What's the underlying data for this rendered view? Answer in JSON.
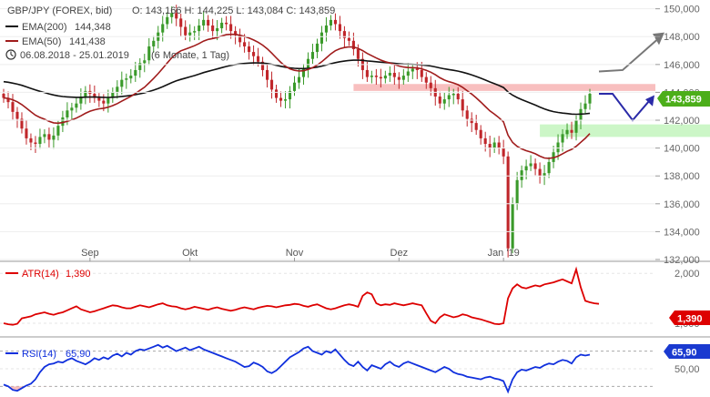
{
  "header": {
    "title": "GBP/JPY (FOREX, bid)",
    "ohlc": "O: 143,166  H: 144,225  L: 143,084  C: 143,859",
    "ema200_label": "EMA(200)",
    "ema200_value": "144,348",
    "ema50_label": "EMA(50)",
    "ema50_value": "141,438",
    "period": "06.08.2018 - 25.01.2019",
    "period_note": "(6 Monate, 1 Tag)"
  },
  "colors": {
    "up": "#3a9a2a",
    "down": "#c0262a",
    "ema200": "#111111",
    "ema50": "#a01c1c",
    "atr": "#dd0000",
    "rsi": "#1030dd",
    "resistance_zone": "#f7b8b8",
    "support_zone": "#c9f5c4",
    "projection_up": "#777777",
    "projection_down": "#2a2aa8"
  },
  "chart_data": [
    {
      "type": "candlestick",
      "title": "GBP/JPY (FOREX, bid)",
      "ylim": [
        132000,
        150500
      ],
      "yticks": [
        "132,000",
        "134,000",
        "136,000",
        "138,000",
        "140,000",
        "142,000",
        "144,000",
        "146,000",
        "148,000",
        "150,000"
      ],
      "xticks": [
        "Sep",
        "Okt",
        "Nov",
        "Dez",
        "Jan '19"
      ],
      "price_badge": "143,859",
      "series": [
        {
          "name": "EMA(200)",
          "value": "144,348"
        },
        {
          "name": "EMA(50)",
          "value": "141,438"
        }
      ],
      "close": [
        143.6,
        143.3,
        142.6,
        142.1,
        141.4,
        140.7,
        140.4,
        140.3,
        140.8,
        141.0,
        140.6,
        140.9,
        141.6,
        142.2,
        142.7,
        142.9,
        143.2,
        143.7,
        144.1,
        143.9,
        143.6,
        143.4,
        143.2,
        143.6,
        144.0,
        144.4,
        144.9,
        145.0,
        145.2,
        145.6,
        146.1,
        146.3,
        147.3,
        147.7,
        148.3,
        148.9,
        149.4,
        149.7,
        149.3,
        148.7,
        148.1,
        148.3,
        148.4,
        148.8,
        149.2,
        148.8,
        148.4,
        148.6,
        149.0,
        148.9,
        148.4,
        148.1,
        147.6,
        147.3,
        146.9,
        146.6,
        146.2,
        145.6,
        144.9,
        144.2,
        143.6,
        143.4,
        143.5,
        144.1,
        144.7,
        145.1,
        145.7,
        146.4,
        146.9,
        147.5,
        148.3,
        148.8,
        149.2,
        148.9,
        148.4,
        147.9,
        147.7,
        147.1,
        146.4,
        145.6,
        145.1,
        145.2,
        145.1,
        145.0,
        145.2,
        145.4,
        145.1,
        144.9,
        145.2,
        145.5,
        145.7,
        145.6,
        145.1,
        144.7,
        144.3,
        143.7,
        143.2,
        143.5,
        143.8,
        143.9,
        143.5,
        142.7,
        142.1,
        141.8,
        141.3,
        140.7,
        140.3,
        140.0,
        140.4,
        140.0,
        139.4,
        132.8,
        136.0,
        137.7,
        138.4,
        138.7,
        138.9,
        138.5,
        138.0,
        138.2,
        139.0,
        139.7,
        140.4,
        141.0,
        141.3,
        141.1,
        142.0,
        142.8,
        143.2,
        143.9
      ],
      "annotations": {
        "resistance_zone": [
          144.1,
          144.6
        ],
        "support_zone": [
          140.8,
          141.7
        ],
        "projection_up_target": 148.3,
        "projection_down_low": 142.0,
        "projection_down_high": 143.9
      }
    },
    {
      "type": "line",
      "name": "ATR(14)",
      "label": "ATR(14)",
      "value": "1,390",
      "ylim": [
        0.8,
        2.15
      ],
      "yticks": [
        "2,000",
        "1,000"
      ],
      "values": [
        1.0,
        0.98,
        0.97,
        0.99,
        1.1,
        1.12,
        1.14,
        1.18,
        1.2,
        1.22,
        1.19,
        1.17,
        1.2,
        1.22,
        1.26,
        1.3,
        1.34,
        1.28,
        1.25,
        1.22,
        1.24,
        1.27,
        1.3,
        1.33,
        1.36,
        1.35,
        1.32,
        1.3,
        1.3,
        1.33,
        1.36,
        1.34,
        1.32,
        1.35,
        1.38,
        1.4,
        1.36,
        1.34,
        1.33,
        1.3,
        1.28,
        1.3,
        1.33,
        1.31,
        1.29,
        1.27,
        1.3,
        1.32,
        1.29,
        1.27,
        1.25,
        1.27,
        1.3,
        1.32,
        1.3,
        1.28,
        1.31,
        1.33,
        1.35,
        1.34,
        1.32,
        1.34,
        1.36,
        1.37,
        1.39,
        1.38,
        1.35,
        1.33,
        1.36,
        1.38,
        1.34,
        1.3,
        1.28,
        1.3,
        1.33,
        1.36,
        1.38,
        1.36,
        1.33,
        1.55,
        1.62,
        1.58,
        1.4,
        1.36,
        1.38,
        1.37,
        1.4,
        1.38,
        1.36,
        1.38,
        1.4,
        1.38,
        1.36,
        1.2,
        1.05,
        1.0,
        1.12,
        1.18,
        1.15,
        1.12,
        1.14,
        1.18,
        1.16,
        1.12,
        1.1,
        1.08,
        1.05,
        1.02,
        0.99,
        0.98,
        1.0,
        1.5,
        1.7,
        1.78,
        1.72,
        1.7,
        1.73,
        1.76,
        1.74,
        1.78,
        1.8,
        1.82,
        1.85,
        1.88,
        1.84,
        1.8,
        2.08,
        1.72,
        1.45,
        1.42,
        1.4,
        1.39
      ]
    },
    {
      "type": "line",
      "name": "RSI(14)",
      "label": "RSI(14)",
      "value": "65,90",
      "ylim": [
        20,
        82
      ],
      "yticks": [
        "50,00"
      ],
      "reference_levels": [
        70,
        30
      ],
      "values": [
        32,
        30,
        26,
        25,
        28,
        31,
        33,
        38,
        46,
        52,
        55,
        56,
        58,
        57,
        60,
        62,
        59,
        57,
        55,
        58,
        62,
        60,
        63,
        61,
        65,
        67,
        64,
        68,
        66,
        70,
        72,
        71,
        73,
        75,
        77,
        74,
        76,
        73,
        70,
        72,
        74,
        71,
        73,
        75,
        72,
        70,
        68,
        66,
        64,
        62,
        60,
        58,
        55,
        52,
        53,
        57,
        55,
        52,
        47,
        45,
        48,
        53,
        58,
        63,
        66,
        69,
        73,
        75,
        70,
        68,
        66,
        70,
        68,
        72,
        66,
        60,
        55,
        53,
        58,
        52,
        48,
        54,
        52,
        50,
        55,
        58,
        54,
        52,
        56,
        58,
        56,
        54,
        52,
        50,
        48,
        46,
        49,
        52,
        50,
        46,
        44,
        43,
        41,
        40,
        39,
        38,
        40,
        41,
        39,
        38,
        36,
        24,
        38,
        46,
        49,
        48,
        50,
        52,
        51,
        54,
        56,
        55,
        58,
        60,
        59,
        56,
        63,
        66,
        65,
        66
      ]
    }
  ]
}
